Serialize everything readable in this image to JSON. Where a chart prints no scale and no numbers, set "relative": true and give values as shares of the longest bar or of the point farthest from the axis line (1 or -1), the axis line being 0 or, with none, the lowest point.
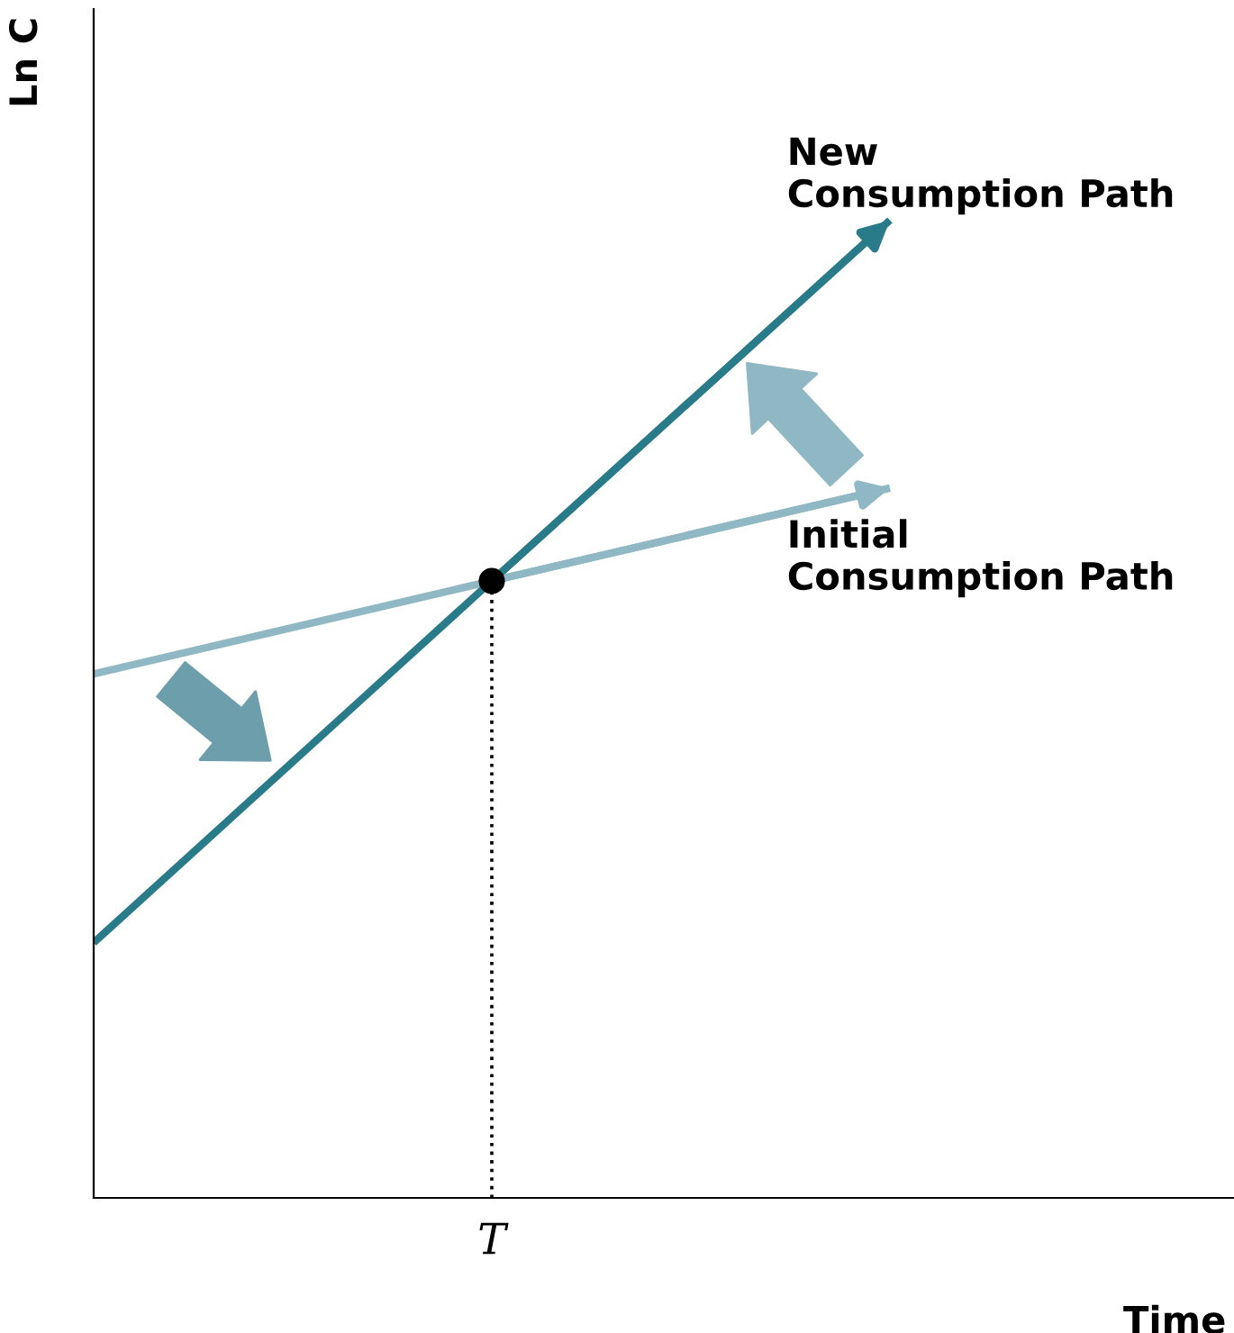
{
  "chart_data": {
    "type": "line",
    "relative": true,
    "xlabel": "Time",
    "ylabel": "Ln C",
    "categories": [
      null,
      null,
      null
    ],
    "series": [
      {
        "name": "Initial\nConsumption Path",
        "color": "#8fb8c4",
        "values": [
          0.536,
          0.631,
          0.726
        ]
      },
      {
        "name": "New\nConsumption Path",
        "color": "#2a7b8a",
        "values": [
          0.261,
          0.631,
          1.0
        ]
      }
    ],
    "ref_lines": [
      {
        "axis": "x",
        "value": "T",
        "line_style": "dotted",
        "color": "#000000"
      }
    ]
  }
}
